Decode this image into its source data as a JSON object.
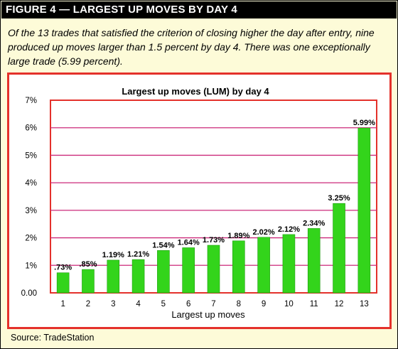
{
  "figure": {
    "title": "FIGURE 4 — LARGEST UP MOVES BY DAY 4",
    "caption": "Of the 13 trades that satisfied the criterion of closing higher the day after entry, nine produced up moves larger than 1.5 percent by day 4. There was one exceptionally large trade (5.99 percent).",
    "source": "Source: TradeStation"
  },
  "colors": {
    "bar": "#33d41b",
    "bar_dark": "#1f9d10",
    "grid": "#cc2a7a",
    "border": "#e4312b",
    "background": "#fdfbd8"
  },
  "chart_data": {
    "type": "bar",
    "title": "Largest up moves (LUM) by day 4",
    "xlabel": "Largest up moves",
    "ylabel": "",
    "categories": [
      "1",
      "2",
      "3",
      "4",
      "5",
      "6",
      "7",
      "8",
      "9",
      "10",
      "11",
      "12",
      "13"
    ],
    "values": [
      0.73,
      0.85,
      1.19,
      1.21,
      1.54,
      1.64,
      1.73,
      1.89,
      2.02,
      2.12,
      2.34,
      3.25,
      5.99
    ],
    "data_labels": [
      ".73%",
      ".85%",
      "1.19%",
      "1.21%",
      "1.54%",
      "1.64%",
      "1.73%",
      "1.89%",
      "2.02%",
      "2.12%",
      "2.34%",
      "3.25%",
      "5.99%"
    ],
    "yticks": [
      0,
      1,
      2,
      3,
      4,
      5,
      6,
      7
    ],
    "ytick_labels": [
      "0.00",
      "1%",
      "2%",
      "3%",
      "4%",
      "5%",
      "6%",
      "7%"
    ],
    "ylim": [
      0,
      7
    ],
    "grid": true,
    "legend": "none"
  }
}
